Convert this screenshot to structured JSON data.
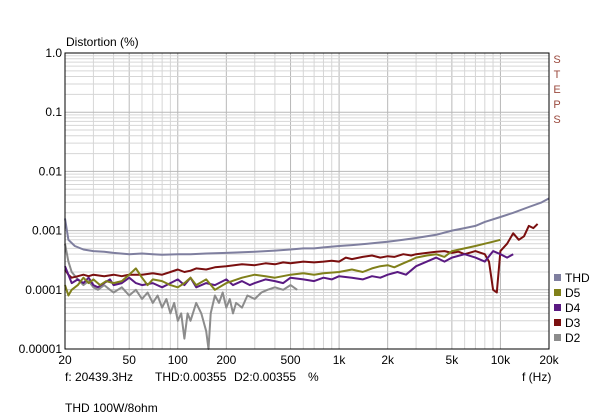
{
  "chart_data": {
    "type": "line",
    "title": "THD 100W/8ohm",
    "ylabel": "Distortion (%)",
    "xlabel": "f (Hz)",
    "side_label": "STEPS",
    "readout": {
      "frequency": "f: 20439.3Hz",
      "thd": "THD:0.00355",
      "d2": "D2:0.00355",
      "unit": "%"
    },
    "x_scale": "log",
    "y_scale": "log",
    "xlim": [
      20,
      20000
    ],
    "ylim": [
      1e-05,
      1.0
    ],
    "grid": true,
    "legend_position": "right",
    "x_ticks": [
      {
        "value": 20,
        "label": "20"
      },
      {
        "value": 50,
        "label": "50"
      },
      {
        "value": 100,
        "label": "100"
      },
      {
        "value": 200,
        "label": "200"
      },
      {
        "value": 500,
        "label": "500"
      },
      {
        "value": 1000,
        "label": "1k"
      },
      {
        "value": 2000,
        "label": "2k"
      },
      {
        "value": 5000,
        "label": "5k"
      },
      {
        "value": 10000,
        "label": "10k"
      },
      {
        "value": 20000,
        "label": "20k"
      }
    ],
    "y_ticks": [
      {
        "value": 1.0,
        "label": "1.0"
      },
      {
        "value": 0.1,
        "label": "0.1"
      },
      {
        "value": 0.01,
        "label": "0.01"
      },
      {
        "value": 0.001,
        "label": "0.001"
      },
      {
        "value": 0.0001,
        "label": "0.0001"
      },
      {
        "value": 1e-05,
        "label": "0.00001"
      }
    ],
    "series": [
      {
        "name": "THD",
        "color": "#7f7f9f",
        "points": [
          [
            20,
            0.0016
          ],
          [
            21,
            0.0007
          ],
          [
            23,
            0.00055
          ],
          [
            26,
            0.00048
          ],
          [
            30,
            0.00045
          ],
          [
            35,
            0.00044
          ],
          [
            40,
            0.00042
          ],
          [
            50,
            0.0004
          ],
          [
            60,
            0.00041
          ],
          [
            70,
            0.0004
          ],
          [
            80,
            0.00039
          ],
          [
            100,
            0.0004
          ],
          [
            120,
            0.0004
          ],
          [
            150,
            0.00041
          ],
          [
            200,
            0.00042
          ],
          [
            250,
            0.00043
          ],
          [
            300,
            0.00044
          ],
          [
            400,
            0.00046
          ],
          [
            500,
            0.00048
          ],
          [
            600,
            0.0005
          ],
          [
            700,
            0.0005
          ],
          [
            800,
            0.00052
          ],
          [
            1000,
            0.00055
          ],
          [
            1200,
            0.00057
          ],
          [
            1500,
            0.0006
          ],
          [
            2000,
            0.00065
          ],
          [
            2500,
            0.0007
          ],
          [
            3000,
            0.00075
          ],
          [
            4000,
            0.00085
          ],
          [
            5000,
            0.001
          ],
          [
            6000,
            0.0011
          ],
          [
            7000,
            0.0012
          ],
          [
            8000,
            0.0014
          ],
          [
            10000,
            0.0017
          ],
          [
            12000,
            0.002
          ],
          [
            15000,
            0.0025
          ],
          [
            18000,
            0.003
          ],
          [
            20000,
            0.0035
          ]
        ]
      },
      {
        "name": "D5",
        "color": "#80801a",
        "points": [
          [
            20,
            0.00012
          ],
          [
            21,
            8e-05
          ],
          [
            22,
            0.0001
          ],
          [
            24,
            0.00012
          ],
          [
            26,
            0.00016
          ],
          [
            28,
            0.00013
          ],
          [
            30,
            0.00015
          ],
          [
            33,
            0.00012
          ],
          [
            36,
            0.00014
          ],
          [
            40,
            0.00013
          ],
          [
            45,
            0.00014
          ],
          [
            50,
            0.00018
          ],
          [
            55,
            0.00023
          ],
          [
            60,
            0.00016
          ],
          [
            65,
            0.00012
          ],
          [
            70,
            0.00015
          ],
          [
            80,
            0.00014
          ],
          [
            90,
            0.00012
          ],
          [
            100,
            0.00011
          ],
          [
            110,
            0.00013
          ],
          [
            120,
            0.00016
          ],
          [
            130,
            0.00012
          ],
          [
            150,
            0.00015
          ],
          [
            170,
            0.0001
          ],
          [
            200,
            0.00013
          ],
          [
            250,
            0.00016
          ],
          [
            300,
            0.00018
          ],
          [
            350,
            0.00017
          ],
          [
            400,
            0.00016
          ],
          [
            500,
            0.00018
          ],
          [
            600,
            0.00019
          ],
          [
            700,
            0.00018
          ],
          [
            800,
            0.00019
          ],
          [
            1000,
            0.0002
          ],
          [
            1200,
            0.00022
          ],
          [
            1400,
            0.0002
          ],
          [
            1600,
            0.00023
          ],
          [
            1800,
            0.00025
          ],
          [
            2000,
            0.00026
          ],
          [
            2200,
            0.00024
          ],
          [
            2500,
            0.00028
          ],
          [
            2800,
            0.00032
          ],
          [
            3000,
            0.00035
          ],
          [
            3500,
            0.00038
          ],
          [
            4000,
            0.0004
          ],
          [
            4500,
            0.00036
          ],
          [
            5000,
            0.00045
          ],
          [
            6000,
            0.0005
          ],
          [
            7000,
            0.00055
          ],
          [
            8000,
            0.0006
          ],
          [
            9000,
            0.00065
          ],
          [
            10000,
            0.0007
          ]
        ]
      },
      {
        "name": "D4",
        "color": "#5a1a82",
        "points": [
          [
            20,
            0.00025
          ],
          [
            21,
            0.00018
          ],
          [
            22,
            0.00013
          ],
          [
            24,
            0.00015
          ],
          [
            26,
            0.00013
          ],
          [
            28,
            0.00016
          ],
          [
            30,
            0.00012
          ],
          [
            32,
            0.00011
          ],
          [
            35,
            0.00013
          ],
          [
            38,
            0.00015
          ],
          [
            40,
            0.00012
          ],
          [
            45,
            0.00013
          ],
          [
            50,
            0.00016
          ],
          [
            55,
            0.00013
          ],
          [
            60,
            0.00012
          ],
          [
            70,
            0.00013
          ],
          [
            80,
            0.00011
          ],
          [
            90,
            0.00013
          ],
          [
            100,
            0.00015
          ],
          [
            110,
            0.00012
          ],
          [
            120,
            0.00016
          ],
          [
            130,
            0.00011
          ],
          [
            150,
            0.00013
          ],
          [
            170,
            0.00012
          ],
          [
            200,
            0.00015
          ],
          [
            220,
            0.00012
          ],
          [
            250,
            0.00014
          ],
          [
            280,
            0.00012
          ],
          [
            300,
            0.00013
          ],
          [
            350,
            0.00015
          ],
          [
            400,
            0.00014
          ],
          [
            450,
            0.00013
          ],
          [
            500,
            0.00016
          ],
          [
            600,
            0.00015
          ],
          [
            700,
            0.00014
          ],
          [
            800,
            0.00016
          ],
          [
            900,
            0.00015
          ],
          [
            1000,
            0.00017
          ],
          [
            1200,
            0.00016
          ],
          [
            1400,
            0.00015
          ],
          [
            1600,
            0.00017
          ],
          [
            1800,
            0.00016
          ],
          [
            2000,
            0.00018
          ],
          [
            2300,
            0.0002
          ],
          [
            2600,
            0.00018
          ],
          [
            3000,
            0.00025
          ],
          [
            3500,
            0.0003
          ],
          [
            4000,
            0.00035
          ],
          [
            4500,
            0.0003
          ],
          [
            5000,
            0.00035
          ],
          [
            6000,
            0.0004
          ],
          [
            7000,
            0.00035
          ],
          [
            8000,
            0.0003
          ],
          [
            9000,
            0.00045
          ],
          [
            10000,
            0.0004
          ],
          [
            11000,
            0.00035
          ],
          [
            12000,
            0.0004
          ]
        ]
      },
      {
        "name": "D3",
        "color": "#7a0f0f",
        "points": [
          [
            20,
            0.00022
          ],
          [
            21,
            0.00018
          ],
          [
            22,
            0.00016
          ],
          [
            24,
            0.00017
          ],
          [
            26,
            0.00018
          ],
          [
            28,
            0.00017
          ],
          [
            30,
            0.00018
          ],
          [
            35,
            0.00017
          ],
          [
            40,
            0.00018
          ],
          [
            45,
            0.00017
          ],
          [
            50,
            0.00018
          ],
          [
            60,
            0.00018
          ],
          [
            70,
            0.00019
          ],
          [
            80,
            0.00018
          ],
          [
            90,
            0.0002
          ],
          [
            100,
            0.00022
          ],
          [
            110,
            0.0002
          ],
          [
            120,
            0.00021
          ],
          [
            130,
            0.00023
          ],
          [
            150,
            0.00022
          ],
          [
            170,
            0.00024
          ],
          [
            200,
            0.00025
          ],
          [
            250,
            0.00027
          ],
          [
            300,
            0.00026
          ],
          [
            350,
            0.00028
          ],
          [
            400,
            0.00027
          ],
          [
            450,
            0.00029
          ],
          [
            500,
            0.00028
          ],
          [
            600,
            0.0003
          ],
          [
            700,
            0.00029
          ],
          [
            800,
            0.0003
          ],
          [
            900,
            0.00031
          ],
          [
            1000,
            0.0003
          ],
          [
            1100,
            0.00035
          ],
          [
            1200,
            0.00033
          ],
          [
            1400,
            0.00036
          ],
          [
            1600,
            0.00038
          ],
          [
            1800,
            0.00035
          ],
          [
            2000,
            0.00037
          ],
          [
            2200,
            0.00036
          ],
          [
            2500,
            0.0004
          ],
          [
            2800,
            0.00038
          ],
          [
            3000,
            0.0004
          ],
          [
            3500,
            0.00042
          ],
          [
            4000,
            0.00044
          ],
          [
            4500,
            0.00045
          ],
          [
            5000,
            0.00042
          ],
          [
            5500,
            0.00044
          ],
          [
            6000,
            0.0004
          ],
          [
            7000,
            0.00045
          ],
          [
            8000,
            0.0004
          ],
          [
            8500,
            0.0003
          ],
          [
            9000,
            0.0001
          ],
          [
            9500,
            9e-05
          ],
          [
            10000,
            0.00045
          ],
          [
            11000,
            0.0006
          ],
          [
            12000,
            0.0009
          ],
          [
            13000,
            0.0007
          ],
          [
            14000,
            0.0008
          ],
          [
            15000,
            0.0012
          ],
          [
            16000,
            0.0011
          ],
          [
            17000,
            0.0013
          ]
        ]
      },
      {
        "name": "D2",
        "color": "#8c8c8c",
        "points": [
          [
            20,
            0.0006
          ],
          [
            21,
            0.0003
          ],
          [
            22,
            0.0002
          ],
          [
            24,
            0.00015
          ],
          [
            26,
            0.00012
          ],
          [
            28,
            0.00014
          ],
          [
            30,
            0.00011
          ],
          [
            32,
            0.0001
          ],
          [
            35,
            0.00012
          ],
          [
            38,
            0.0001
          ],
          [
            40,
            9e-05
          ],
          [
            45,
            0.00011
          ],
          [
            50,
            8e-05
          ],
          [
            55,
            0.0001
          ],
          [
            60,
            7e-05
          ],
          [
            65,
            9e-05
          ],
          [
            70,
            6e-05
          ],
          [
            75,
            8e-05
          ],
          [
            80,
            5e-05
          ],
          [
            85,
            7e-05
          ],
          [
            90,
            4e-05
          ],
          [
            95,
            6e-05
          ],
          [
            100,
            3e-05
          ],
          [
            105,
            4e-05
          ],
          [
            110,
            1.5e-05
          ],
          [
            115,
            4e-05
          ],
          [
            120,
            3e-05
          ],
          [
            130,
            6e-05
          ],
          [
            140,
            4e-05
          ],
          [
            150,
            2e-05
          ],
          [
            155,
            1e-05
          ],
          [
            160,
            4e-05
          ],
          [
            170,
            8e-05
          ],
          [
            180,
            6e-05
          ],
          [
            190,
            9e-05
          ],
          [
            200,
            5e-05
          ],
          [
            210,
            7e-05
          ],
          [
            220,
            4e-05
          ],
          [
            230,
            6e-05
          ],
          [
            250,
            5e-05
          ],
          [
            270,
            8e-05
          ],
          [
            300,
            7e-05
          ],
          [
            330,
            9e-05
          ],
          [
            360,
            0.0001
          ],
          [
            400,
            0.00011
          ],
          [
            450,
            0.0001
          ],
          [
            500,
            0.00012
          ],
          [
            550,
            0.0001
          ]
        ]
      }
    ]
  }
}
